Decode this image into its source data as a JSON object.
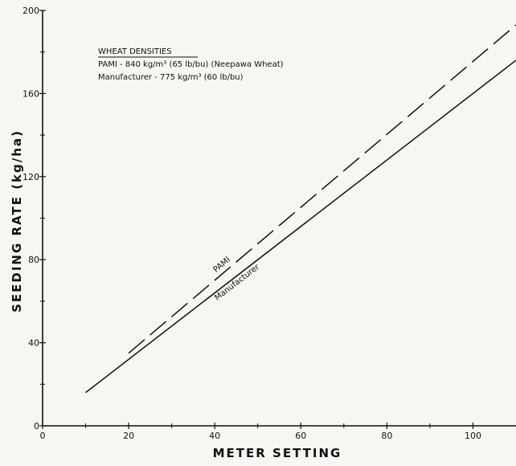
{
  "chart_data": {
    "type": "line",
    "xlabel": "METER SETTING",
    "ylabel": "SEEDING RATE (kg/ha)",
    "xlim": [
      0,
      110
    ],
    "ylim": [
      0,
      200
    ],
    "x_ticks": [
      0,
      20,
      40,
      60,
      80,
      100
    ],
    "y_ticks": [
      0,
      40,
      80,
      120,
      160,
      200
    ],
    "grid": false,
    "legend": {
      "title": "WHEAT DENSITIES",
      "entries": [
        "PAMI - 840 kg/m³ (65 lb/bu) (Neepawa Wheat)",
        "Manufacturer - 775 kg/m³ (60 lb/bu)"
      ],
      "placement": "top-left"
    },
    "series": [
      {
        "name": "PAMI",
        "line_style": "dashed",
        "x": [
          20,
          110
        ],
        "y": [
          35,
          193
        ]
      },
      {
        "name": "Manufacturer",
        "line_style": "solid",
        "x": [
          10,
          110
        ],
        "y": [
          16,
          176
        ]
      }
    ]
  }
}
